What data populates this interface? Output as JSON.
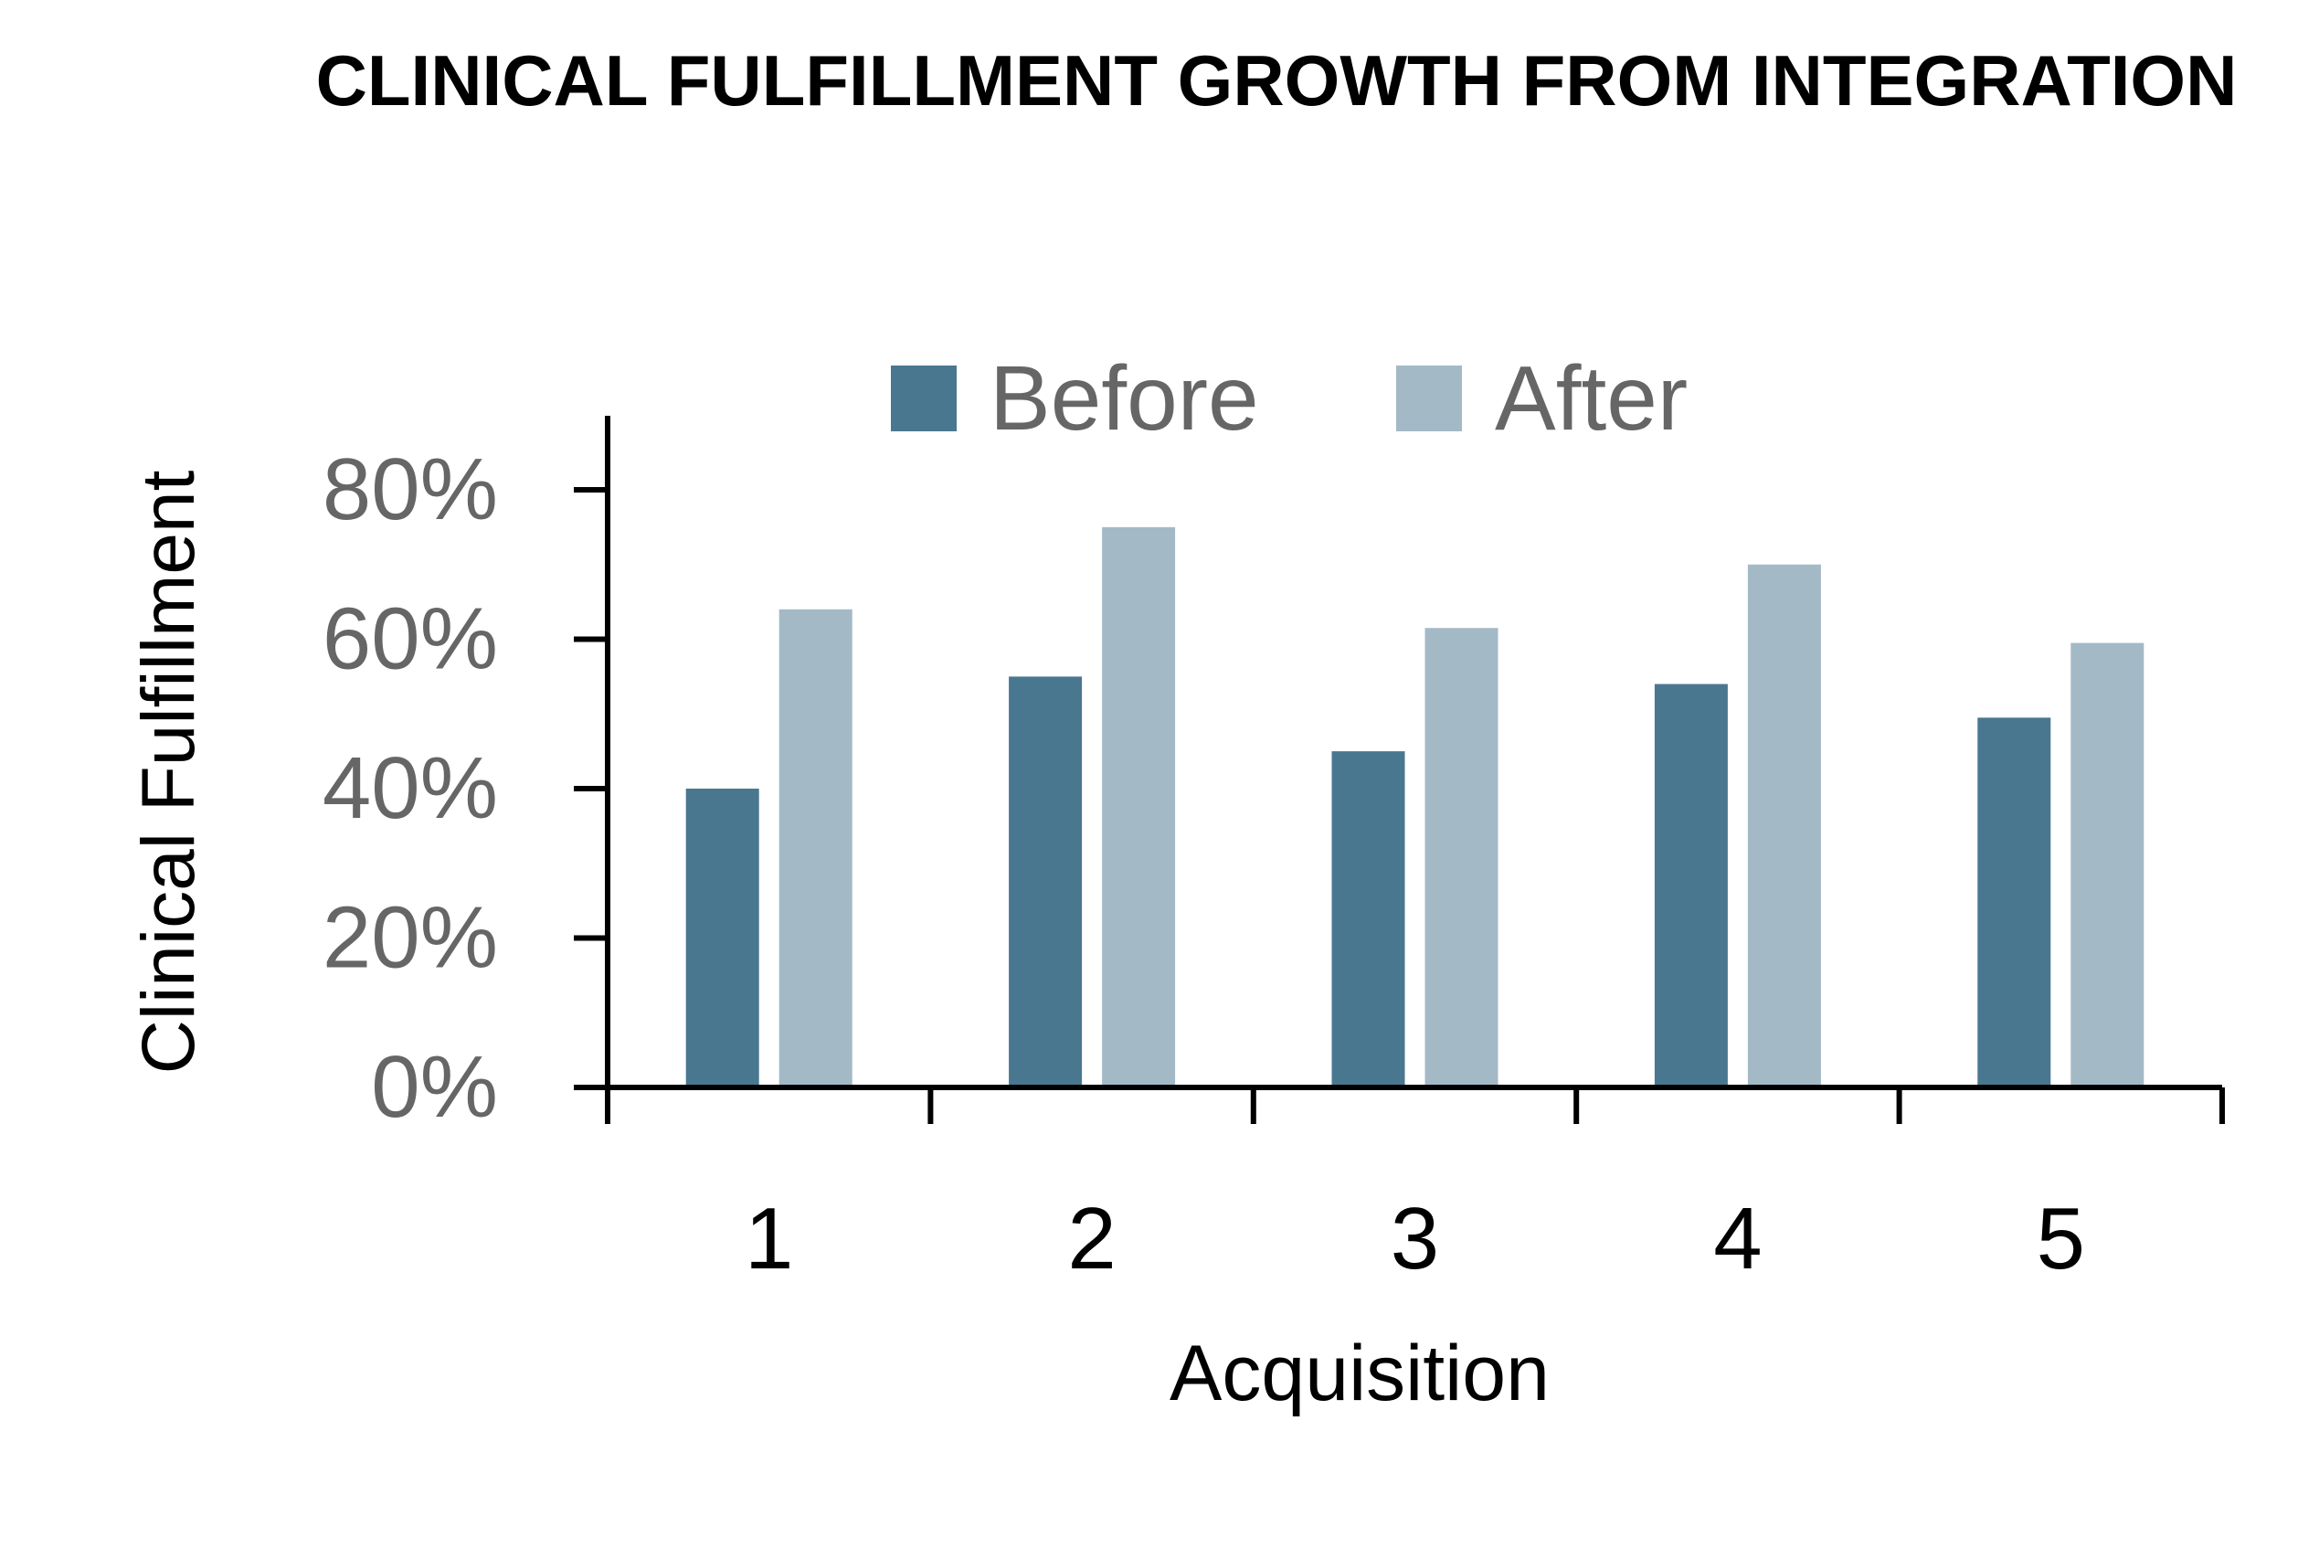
{
  "chart_data": {
    "type": "bar",
    "title": "CLINICAL FULFILLMENT GROWTH FROM INTEGRATION",
    "xlabel": "Acquisition",
    "ylabel": "Clinical Fulfillment",
    "categories": [
      "1",
      "2",
      "3",
      "4",
      "5"
    ],
    "series": [
      {
        "name": "Before",
        "values": [
          0.4,
          0.55,
          0.45,
          0.54,
          0.495
        ],
        "color": "#4a7790"
      },
      {
        "name": "After",
        "values": [
          0.64,
          0.75,
          0.615,
          0.7,
          0.595
        ],
        "color": "#a3b9c6"
      }
    ],
    "ylim": [
      0,
      0.8
    ],
    "yticks": [
      0,
      0.2,
      0.4,
      0.6,
      0.8
    ],
    "ytick_labels": [
      "0%",
      "20%",
      "40%",
      "60%",
      "80%"
    ],
    "legend_position": "top-center",
    "grid": false
  }
}
